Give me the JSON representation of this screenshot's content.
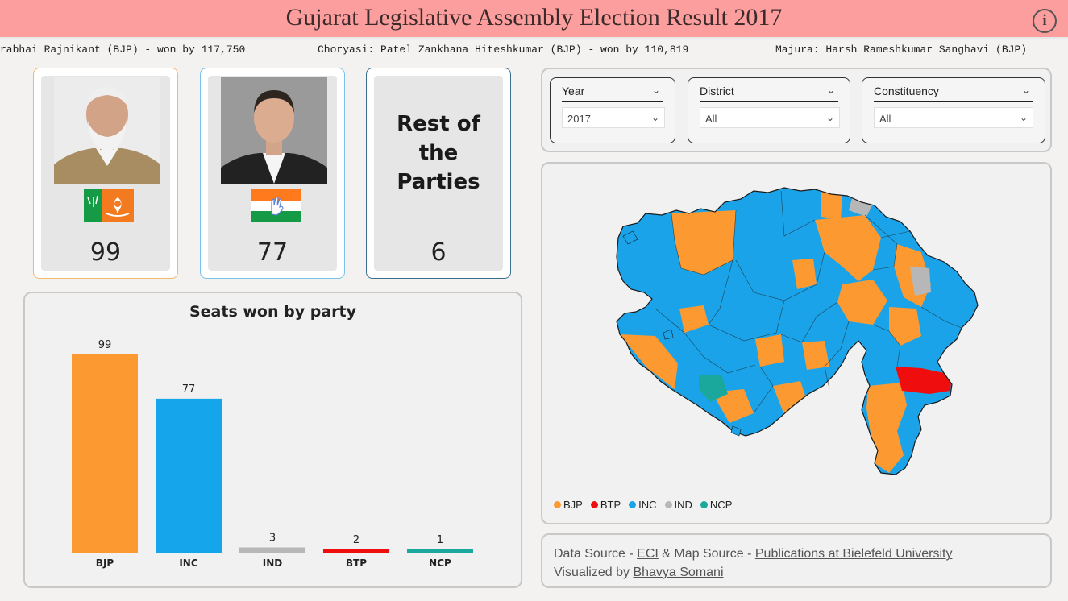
{
  "header": {
    "title": "Gujarat Legislative Assembly Election Result 2017",
    "info_icon": "i"
  },
  "ticker": {
    "items": [
      "rabhai Rajnikant (BJP) - won by 117,750",
      "Choryasi: Patel Zankhana Hiteshkumar (BJP) - won by 110,819",
      "Majura: Harsh Rameshkumar Sanghavi (BJP)"
    ]
  },
  "cards": [
    {
      "party": "BJP",
      "seats": "99",
      "border": "#f3b86a",
      "icon": "bjp-leader-photo"
    },
    {
      "party": "INC",
      "seats": "77",
      "border": "#7ac3e8",
      "icon": "inc-leader-photo"
    },
    {
      "label": "Rest of the Parties",
      "seats": "6",
      "border": "#3c6e8f"
    }
  ],
  "filters": [
    {
      "label": "Year",
      "value": "2017"
    },
    {
      "label": "District",
      "value": "All"
    },
    {
      "label": "Constituency",
      "value": "All"
    }
  ],
  "map_legend": [
    {
      "name": "BJP",
      "color": "#fc9a31"
    },
    {
      "name": "BTP",
      "color": "#ef0d0d"
    },
    {
      "name": "INC",
      "color": "#1aa3e9"
    },
    {
      "name": "IND",
      "color": "#b7b7b7"
    },
    {
      "name": "NCP",
      "color": "#1aa89c"
    }
  ],
  "footer": {
    "data_source_prefix": "Data Source - ",
    "eci": "ECI",
    "map_source_prefix": " & Map Source - ",
    "map_source": "Publications at Bielefeld University",
    "visualized_prefix": "Visualized by ",
    "author": "Bhavya Somani"
  },
  "chart_data": {
    "type": "bar",
    "title": "Seats won by party",
    "categories": [
      "BJP",
      "INC",
      "IND",
      "BTP",
      "NCP"
    ],
    "values": [
      99,
      77,
      3,
      2,
      1
    ],
    "colors": [
      "#fc9a31",
      "#14a5ea",
      "#b7b7b7",
      "#ef0d0d",
      "#1aa89c"
    ],
    "ylim": [
      0,
      99
    ],
    "xlabel": "",
    "ylabel": "",
    "grid": false,
    "data_labels": true
  }
}
